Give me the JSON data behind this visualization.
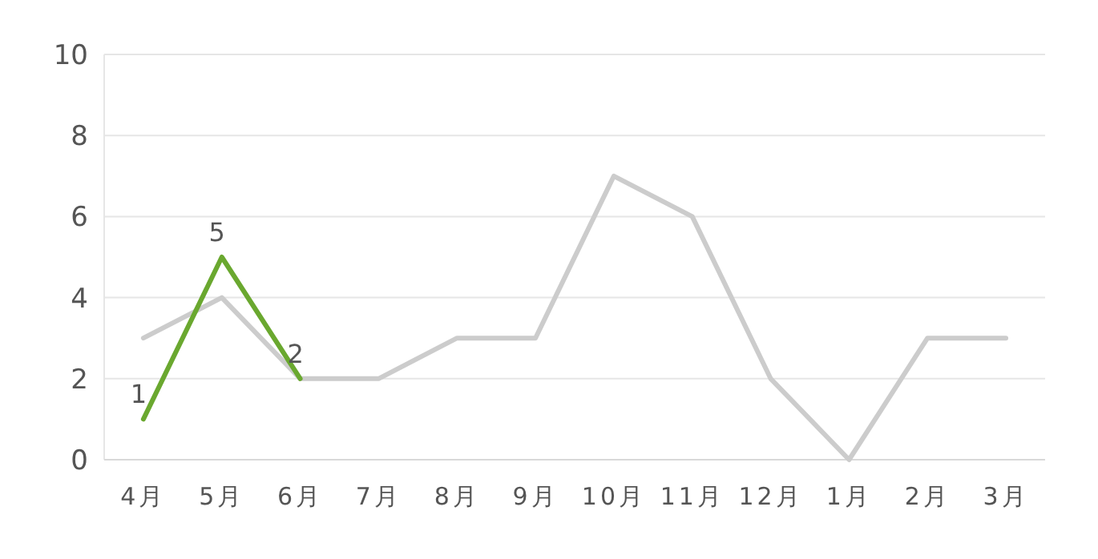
{
  "chart_data": {
    "type": "line",
    "categories": [
      "4月",
      "5月",
      "6月",
      "7月",
      "8月",
      "9月",
      "10月",
      "11月",
      "12月",
      "1月",
      "2月",
      "3月"
    ],
    "series": [
      {
        "color": "#cccccc",
        "values": [
          3,
          4,
          2,
          2,
          3,
          3,
          7,
          6,
          2,
          0,
          3,
          3
        ]
      },
      {
        "color": "#6aa82f",
        "values": [
          1,
          5,
          2,
          null,
          null,
          null,
          null,
          null,
          null,
          null,
          null,
          null
        ],
        "value_labels": [
          "1",
          "5",
          "2",
          null,
          null,
          null,
          null,
          null,
          null,
          null,
          null,
          null
        ]
      }
    ],
    "ylim": [
      0,
      10
    ],
    "yticks": [
      0,
      2,
      4,
      6,
      8,
      10
    ],
    "grid": "y",
    "marker": "none",
    "line_style": "solid"
  }
}
